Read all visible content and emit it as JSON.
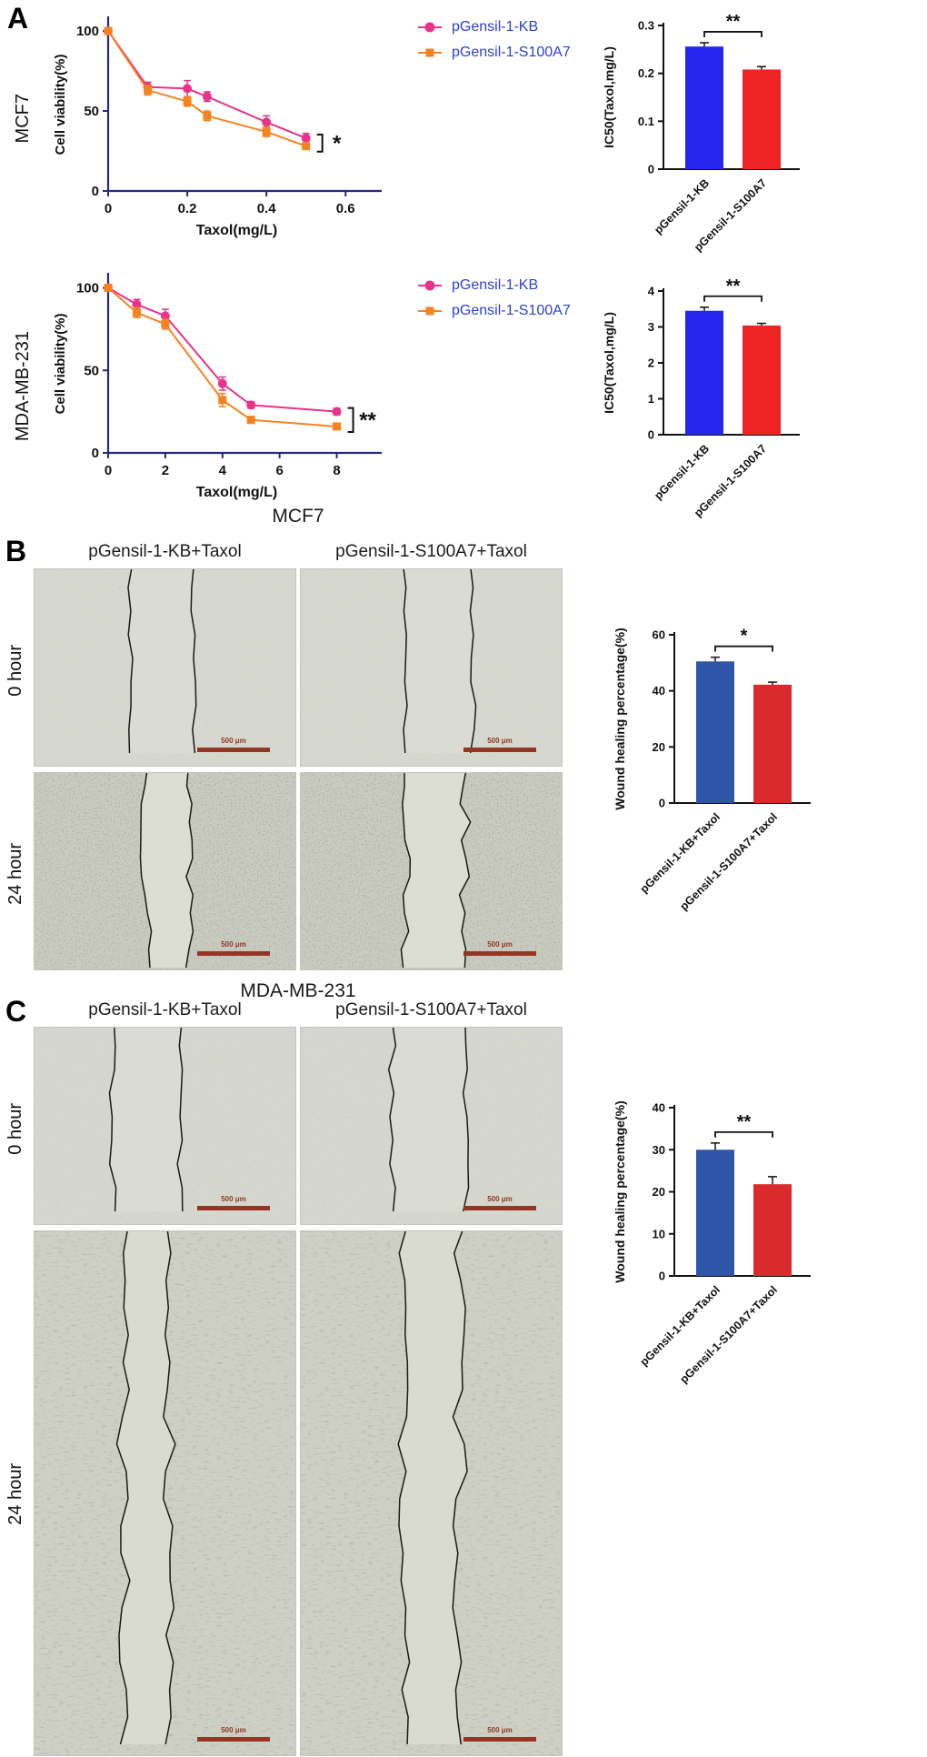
{
  "figure": {
    "panel_a_label": "A",
    "panel_b_label": "B",
    "panel_c_label": "C",
    "mcf7_axis_label": "MCF7",
    "mda_axis_label": "MDA-MB-231",
    "panel_b_title": "MCF7",
    "panel_c_title": "MDA-MB-231",
    "col_kb": "pGensil-1-KB+Taxol",
    "col_s100a7": "pGensil-1-S100A7+Taxol",
    "row_0h": "0 hour",
    "row_24h": "24 hour",
    "scale_bar_label": "500 μm"
  },
  "legend": {
    "kb": "pGensil-1-KB",
    "s100a7": "pGensil-1-S100A7"
  },
  "colors": {
    "pink": "#E8338A",
    "orange": "#F58220",
    "legend_text": "#2B3FD0",
    "axis_navy": "#28287E",
    "bar_blue_a": "#2626EE",
    "bar_red_a": "#EE2424",
    "bar_blue_bc": "#2F55A8",
    "bar_red_bc": "#D92B2B",
    "scale_bar": "#943626"
  },
  "chart_data": [
    {
      "id": "mcf7_viability",
      "type": "line",
      "xlabel": "Taxol(mg/L)",
      "ylabel": "Cell viability(%)",
      "xlim": [
        0,
        0.65
      ],
      "ylim": [
        0,
        108
      ],
      "xticks": [
        0,
        0.2,
        0.4,
        0.6
      ],
      "yticks": [
        0,
        50,
        100
      ],
      "significance": "*",
      "series": [
        {
          "name": "pGensil-1-KB",
          "color": "pink",
          "marker": "circle",
          "x": [
            0,
            0.1,
            0.2,
            0.25,
            0.4,
            0.5
          ],
          "y": [
            100,
            65,
            64,
            59,
            43,
            33
          ],
          "err": [
            1.5,
            3,
            5,
            3,
            4,
            3
          ]
        },
        {
          "name": "pGensil-1-S100A7",
          "color": "orange",
          "marker": "square",
          "x": [
            0,
            0.1,
            0.2,
            0.25,
            0.4,
            0.5
          ],
          "y": [
            100,
            63,
            56,
            47,
            37,
            28
          ],
          "err": [
            1.5,
            3,
            3,
            3,
            3,
            2
          ]
        }
      ]
    },
    {
      "id": "mcf7_ic50",
      "type": "bar",
      "ylabel": "IC50(Taxol,mg/L)",
      "categories": [
        "pGensil-1-KB",
        "pGensil-1-S100A7"
      ],
      "values": [
        0.256,
        0.208
      ],
      "errors": [
        0.008,
        0.006
      ],
      "bar_colors": [
        "bar_blue_a",
        "bar_red_a"
      ],
      "ylim": [
        0,
        0.3
      ],
      "yticks": [
        0,
        0.1,
        0.2,
        0.3
      ],
      "significance": "**"
    },
    {
      "id": "mda_viability",
      "type": "line",
      "xlabel": "Taxol(mg/L)",
      "ylabel": "Cell viability(%)",
      "xlim": [
        0,
        9
      ],
      "ylim": [
        0,
        108
      ],
      "xticks": [
        0,
        2,
        4,
        6,
        8
      ],
      "yticks": [
        0,
        50,
        100
      ],
      "significance": "**",
      "series": [
        {
          "name": "pGensil-1-KB",
          "color": "pink",
          "marker": "circle",
          "x": [
            0,
            1,
            2,
            4,
            5,
            8
          ],
          "y": [
            100,
            90,
            83,
            42,
            29,
            25
          ],
          "err": [
            1.5,
            3,
            4,
            4,
            2,
            2
          ]
        },
        {
          "name": "pGensil-1-S100A7",
          "color": "orange",
          "marker": "square",
          "x": [
            0,
            1,
            2,
            4,
            5,
            8
          ],
          "y": [
            100,
            85,
            78,
            32,
            20,
            16
          ],
          "err": [
            1.5,
            3,
            3,
            4,
            2,
            2
          ]
        }
      ]
    },
    {
      "id": "mda_ic50",
      "type": "bar",
      "ylabel": "IC50(Taxol,mg/L)",
      "categories": [
        "pGensil-1-KB",
        "pGensil-1-S100A7"
      ],
      "values": [
        3.45,
        3.04
      ],
      "errors": [
        0.1,
        0.06
      ],
      "bar_colors": [
        "bar_blue_a",
        "bar_red_a"
      ],
      "ylim": [
        0,
        4
      ],
      "yticks": [
        0,
        1,
        2,
        3,
        4
      ],
      "significance": "**"
    },
    {
      "id": "mcf7_wound",
      "type": "bar",
      "ylabel": "Wound healing percentage(%)",
      "categories": [
        "pGensil-1-KB+Taxol",
        "pGensil-1-S100A7+Taxol"
      ],
      "values": [
        50.5,
        42.2
      ],
      "errors": [
        1.5,
        0.9
      ],
      "bar_colors": [
        "bar_blue_bc",
        "bar_red_bc"
      ],
      "ylim": [
        0,
        60
      ],
      "yticks": [
        0,
        20,
        40,
        60
      ],
      "significance": "*"
    },
    {
      "id": "mda_wound",
      "type": "bar",
      "ylabel": "Wound healing percentage(%)",
      "categories": [
        "pGensil-1-KB+Taxol",
        "pGensil-1-S100A7+Taxol"
      ],
      "values": [
        30,
        21.8
      ],
      "errors": [
        1.6,
        1.8
      ],
      "bar_colors": [
        "bar_blue_bc",
        "bar_red_bc"
      ],
      "ylim": [
        0,
        40
      ],
      "yticks": [
        0,
        10,
        20,
        30,
        40
      ],
      "significance": "**"
    }
  ]
}
